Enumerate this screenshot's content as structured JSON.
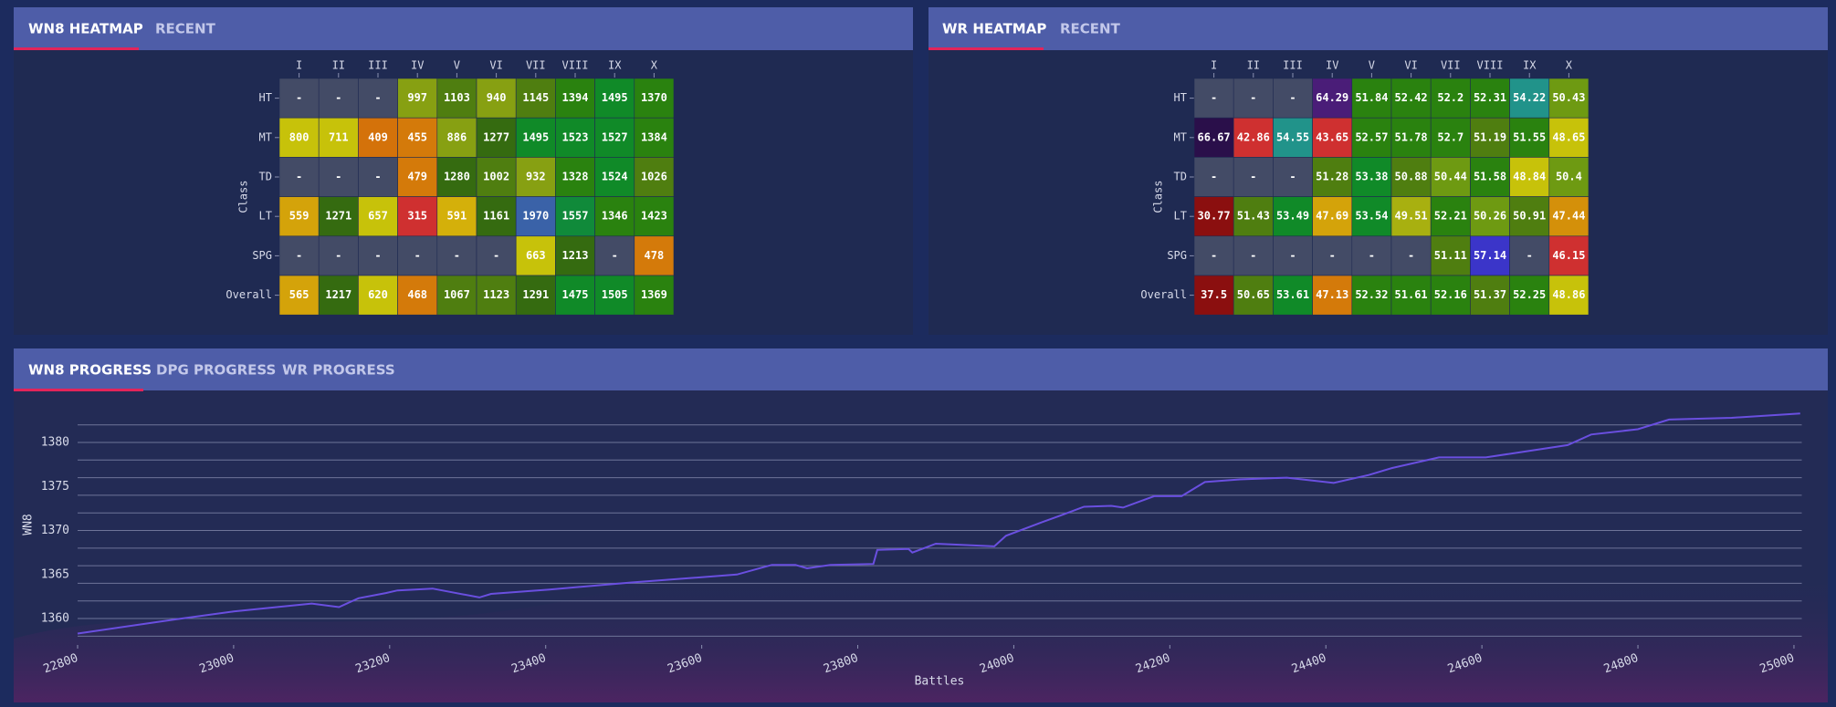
{
  "heatmaps": [
    {
      "tabs": [
        "WN8 HEATMAP",
        "RECENT"
      ],
      "axis_label": "Class",
      "columns": [
        "I",
        "II",
        "III",
        "IV",
        "V",
        "VI",
        "VII",
        "VIII",
        "IX",
        "X"
      ],
      "rows": [
        {
          "label": "HT",
          "cells": [
            "-",
            "-",
            "-",
            997,
            1103,
            940,
            1145,
            1394,
            1495,
            1370
          ],
          "colors": [
            "#434b66",
            "#434b66",
            "#434b66",
            "#87a012",
            "#4f7e10",
            "#87a012",
            "#4f7e10",
            "#2a820f",
            "#108a28",
            "#2a820f"
          ]
        },
        {
          "label": "MT",
          "cells": [
            800,
            711,
            409,
            455,
            886,
            1277,
            1495,
            1523,
            1527,
            1384
          ],
          "colors": [
            "#c7c20a",
            "#c7c20a",
            "#d4720a",
            "#d47a0a",
            "#87a012",
            "#356b10",
            "#108a28",
            "#108a28",
            "#108a28",
            "#2a820f"
          ]
        },
        {
          "label": "TD",
          "cells": [
            "-",
            "-",
            "-",
            479,
            1280,
            1002,
            932,
            1328,
            1524,
            1026
          ],
          "colors": [
            "#434b66",
            "#434b66",
            "#434b66",
            "#d47a0a",
            "#356b10",
            "#4f7e10",
            "#87a012",
            "#2a820f",
            "#108a28",
            "#4f7e10"
          ]
        },
        {
          "label": "LT",
          "cells": [
            559,
            1271,
            657,
            315,
            591,
            1161,
            1970,
            1557,
            1346,
            1423
          ],
          "colors": [
            "#d4a30a",
            "#356b10",
            "#c7c20a",
            "#cf3030",
            "#d4b00a",
            "#356b10",
            "#3a62a8",
            "#108a3a",
            "#2a820f",
            "#2a820f"
          ]
        },
        {
          "label": "SPG",
          "cells": [
            "-",
            "-",
            "-",
            "-",
            "-",
            "-",
            663,
            1213,
            "-",
            478
          ],
          "colors": [
            "#434b66",
            "#434b66",
            "#434b66",
            "#434b66",
            "#434b66",
            "#434b66",
            "#c7c20a",
            "#356b10",
            "#434b66",
            "#d47a0a"
          ]
        },
        {
          "label": "Overall",
          "cells": [
            565,
            1217,
            620,
            468,
            1067,
            1123,
            1291,
            1475,
            1505,
            1369
          ],
          "colors": [
            "#d4a30a",
            "#356b10",
            "#c7c20a",
            "#d47a0a",
            "#4f7e10",
            "#4f7e10",
            "#356b10",
            "#108a28",
            "#108a28",
            "#2a820f"
          ]
        }
      ]
    },
    {
      "tabs": [
        "WR HEATMAP",
        "RECENT"
      ],
      "axis_label": "Class",
      "columns": [
        "I",
        "II",
        "III",
        "IV",
        "V",
        "VI",
        "VII",
        "VIII",
        "IX",
        "X"
      ],
      "rows": [
        {
          "label": "HT",
          "cells": [
            "-",
            "-",
            "-",
            64.29,
            51.84,
            52.42,
            52.2,
            52.31,
            54.22,
            50.43
          ],
          "colors": [
            "#434b66",
            "#434b66",
            "#434b66",
            "#4a1d78",
            "#2a820f",
            "#2a820f",
            "#2a820f",
            "#2a820f",
            "#21938a",
            "#6e9a12"
          ]
        },
        {
          "label": "MT",
          "cells": [
            66.67,
            42.86,
            54.55,
            43.65,
            52.57,
            51.78,
            52.7,
            51.19,
            51.55,
            48.65
          ],
          "colors": [
            "#2a0f4a",
            "#cf3030",
            "#21938a",
            "#cf3030",
            "#2a820f",
            "#2a820f",
            "#2a820f",
            "#4f7e10",
            "#2a820f",
            "#c7c20a"
          ]
        },
        {
          "label": "TD",
          "cells": [
            "-",
            "-",
            "-",
            51.28,
            53.38,
            50.88,
            50.44,
            51.58,
            48.84,
            50.4
          ],
          "colors": [
            "#434b66",
            "#434b66",
            "#434b66",
            "#4f7e10",
            "#108a28",
            "#4f7e10",
            "#6e9a12",
            "#2a820f",
            "#c7c20a",
            "#6e9a12"
          ]
        },
        {
          "label": "LT",
          "cells": [
            30.77,
            51.43,
            53.49,
            47.69,
            53.54,
            49.51,
            52.21,
            50.26,
            50.91,
            47.44
          ],
          "colors": [
            "#8b0f0f",
            "#4f7e10",
            "#108a28",
            "#d4a30a",
            "#108a28",
            "#a8b010",
            "#2a820f",
            "#6e9a12",
            "#4f7e10",
            "#d4900a"
          ]
        },
        {
          "label": "SPG",
          "cells": [
            "-",
            "-",
            "-",
            "-",
            "-",
            "-",
            51.11,
            57.14,
            "-",
            46.15
          ],
          "colors": [
            "#434b66",
            "#434b66",
            "#434b66",
            "#434b66",
            "#434b66",
            "#434b66",
            "#4f7e10",
            "#3b35c9",
            "#434b66",
            "#cf3030"
          ]
        },
        {
          "label": "Overall",
          "cells": [
            37.5,
            50.65,
            53.61,
            47.13,
            52.32,
            51.61,
            52.16,
            51.37,
            52.25,
            48.86
          ],
          "colors": [
            "#8b0f0f",
            "#4f7e10",
            "#108a28",
            "#d47a0a",
            "#2a820f",
            "#2a820f",
            "#2a820f",
            "#4f7e10",
            "#2a820f",
            "#c7c20a"
          ]
        }
      ]
    }
  ],
  "progress_tabs": [
    "WN8 PROGRESS",
    "DPG PROGRESS",
    "WR PROGRESS"
  ],
  "chart_data": {
    "type": "line",
    "x_label": "Battles",
    "y_label": "WN8",
    "color": "#6a4fe0",
    "x": [
      22800,
      22925,
      23000,
      23100,
      23135,
      23160,
      23195,
      23210,
      23255,
      23315,
      23330,
      23405,
      23510,
      23645,
      23690,
      23720,
      23735,
      23765,
      23820,
      23825,
      23865,
      23870,
      23900,
      23975,
      23990,
      24035,
      24060,
      24090,
      24125,
      24140,
      24180,
      24215,
      24245,
      24290,
      24350,
      24410,
      24455,
      24485,
      24545,
      24605,
      24650,
      24710,
      24740,
      24800,
      24840,
      24920,
      25008
    ],
    "values": [
      1358.3,
      1359.9,
      1360.8,
      1361.7,
      1361.3,
      1362.3,
      1362.9,
      1363.2,
      1363.4,
      1362.4,
      1362.8,
      1363.3,
      1364.1,
      1365.0,
      1366.1,
      1366.1,
      1365.7,
      1366.1,
      1366.2,
      1367.8,
      1367.9,
      1367.5,
      1368.5,
      1368.2,
      1369.4,
      1370.9,
      1371.7,
      1372.7,
      1372.8,
      1372.6,
      1373.9,
      1373.9,
      1375.5,
      1375.8,
      1376.0,
      1375.4,
      1376.3,
      1377.1,
      1378.3,
      1378.3,
      1378.9,
      1379.7,
      1380.9,
      1381.5,
      1382.6,
      1382.8,
      1383.3
    ],
    "xlim": [
      22800,
      25010
    ],
    "ylim": [
      1357,
      1384
    ],
    "xticks": [
      22800,
      23000,
      23200,
      23400,
      23600,
      23800,
      24000,
      24200,
      24400,
      24600,
      24800,
      25000
    ],
    "yticks": [
      1360,
      1365,
      1370,
      1375,
      1380
    ],
    "ygrid": [
      1358,
      1360,
      1362,
      1364,
      1366,
      1368,
      1370,
      1372,
      1374,
      1376,
      1378,
      1380,
      1382
    ],
    "grid": true
  }
}
